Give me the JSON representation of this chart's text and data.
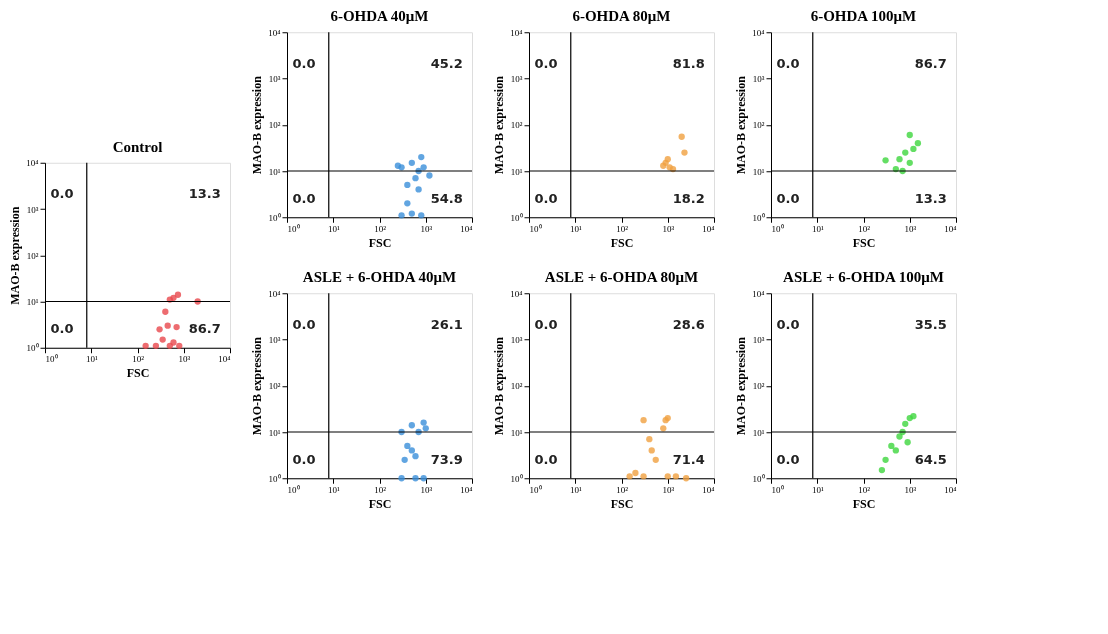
{
  "chart_data": [
    {
      "type": "scatter",
      "title": "Control",
      "xlabel": "FSC",
      "ylabel": "MAO-B expression",
      "log": "xy",
      "grid": false,
      "legend": false,
      "marker": "circle",
      "xlim": [
        1,
        10000
      ],
      "ylim": [
        1,
        10000
      ],
      "xticks": [
        {
          "value": 1,
          "label": "10⁰"
        },
        {
          "value": 10,
          "label": "10¹"
        },
        {
          "value": 100,
          "label": "10²"
        },
        {
          "value": 1000,
          "label": "10³"
        },
        {
          "value": 10000,
          "label": "10⁴"
        }
      ],
      "yticks": [
        {
          "value": 1,
          "label": "10⁰"
        },
        {
          "value": 10,
          "label": "10¹"
        },
        {
          "value": 100,
          "label": "10²"
        },
        {
          "value": 1000,
          "label": "10³"
        },
        {
          "value": 10000,
          "label": "10⁴"
        }
      ],
      "ref_lines": [
        {
          "axis": "x",
          "value": 8
        },
        {
          "axis": "y",
          "value": 10
        }
      ],
      "annotations": [
        "0.0",
        "13.3",
        "0.0",
        "86.7"
      ],
      "series": [
        {
          "color": "#e8474c",
          "x": [
            150,
            250,
            500,
            800,
            300,
            450,
            700,
            350,
            600,
            600,
            750,
            500,
            400,
            2000
          ],
          "values": [
            1.1,
            1.1,
            1.1,
            1.1,
            2.5,
            3,
            2.8,
            1.5,
            1.3,
            12,
            14,
            11,
            6,
            10
          ]
        }
      ]
    },
    {
      "type": "scatter",
      "title": "6-OHDA 40μM",
      "xlabel": "FSC",
      "ylabel": "MAO-B expression",
      "log": "xy",
      "grid": false,
      "legend": false,
      "marker": "circle",
      "xlim": [
        1,
        10000
      ],
      "ylim": [
        1,
        10000
      ],
      "xticks": [
        {
          "value": 1,
          "label": "10⁰"
        },
        {
          "value": 10,
          "label": "10¹"
        },
        {
          "value": 100,
          "label": "10²"
        },
        {
          "value": 1000,
          "label": "10³"
        },
        {
          "value": 10000,
          "label": "10⁴"
        }
      ],
      "yticks": [
        {
          "value": 1,
          "label": "10⁰"
        },
        {
          "value": 10,
          "label": "10¹"
        },
        {
          "value": 100,
          "label": "10²"
        },
        {
          "value": 1000,
          "label": "10³"
        },
        {
          "value": 10000,
          "label": "10⁴"
        }
      ],
      "ref_lines": [
        {
          "axis": "x",
          "value": 8
        },
        {
          "axis": "y",
          "value": 10
        }
      ],
      "annotations": [
        "0.0",
        "45.2",
        "0.0",
        "54.8"
      ],
      "series": [
        {
          "color": "#3a8fd9",
          "x": [
            300,
            500,
            700,
            900,
            1200,
            800,
            400,
            700,
            400,
            300,
            500,
            800,
            600,
            250
          ],
          "values": [
            12,
            15,
            10,
            12,
            8,
            20,
            5,
            4,
            2,
            1.1,
            1.2,
            1.1,
            7,
            13
          ]
        }
      ]
    },
    {
      "type": "scatter",
      "title": "6-OHDA 80μM",
      "xlabel": "FSC",
      "ylabel": "MAO-B expression",
      "log": "xy",
      "grid": false,
      "legend": false,
      "marker": "circle",
      "xlim": [
        1,
        10000
      ],
      "ylim": [
        1,
        10000
      ],
      "xticks": [
        {
          "value": 1,
          "label": "10⁰"
        },
        {
          "value": 10,
          "label": "10¹"
        },
        {
          "value": 100,
          "label": "10²"
        },
        {
          "value": 1000,
          "label": "10³"
        },
        {
          "value": 10000,
          "label": "10⁴"
        }
      ],
      "yticks": [
        {
          "value": 1,
          "label": "10⁰"
        },
        {
          "value": 10,
          "label": "10¹"
        },
        {
          "value": 100,
          "label": "10²"
        },
        {
          "value": 1000,
          "label": "10³"
        },
        {
          "value": 10000,
          "label": "10⁴"
        }
      ],
      "ref_lines": [
        {
          "axis": "x",
          "value": 8
        },
        {
          "axis": "y",
          "value": 10
        }
      ],
      "annotations": [
        "0.0",
        "81.8",
        "0.0",
        "18.2"
      ],
      "series": [
        {
          "color": "#f0a040",
          "x": [
            900,
            1100,
            1300,
            1000,
            800,
            2000,
            2300
          ],
          "values": [
            15,
            12,
            11,
            18,
            13,
            55,
            25
          ]
        }
      ]
    },
    {
      "type": "scatter",
      "title": "6-OHDA 100μM",
      "xlabel": "FSC",
      "ylabel": "MAO-B expression",
      "log": "xy",
      "grid": false,
      "legend": false,
      "marker": "circle",
      "xlim": [
        1,
        10000
      ],
      "ylim": [
        1,
        10000
      ],
      "xticks": [
        {
          "value": 1,
          "label": "10⁰"
        },
        {
          "value": 10,
          "label": "10¹"
        },
        {
          "value": 100,
          "label": "10²"
        },
        {
          "value": 1000,
          "label": "10³"
        },
        {
          "value": 10000,
          "label": "10⁴"
        }
      ],
      "yticks": [
        {
          "value": 1,
          "label": "10⁰"
        },
        {
          "value": 10,
          "label": "10¹"
        },
        {
          "value": 100,
          "label": "10²"
        },
        {
          "value": 1000,
          "label": "10³"
        },
        {
          "value": 10000,
          "label": "10⁴"
        }
      ],
      "ref_lines": [
        {
          "axis": "x",
          "value": 8
        },
        {
          "axis": "y",
          "value": 10
        }
      ],
      "annotations": [
        "0.0",
        "86.7",
        "0.0",
        "13.3"
      ],
      "series": [
        {
          "color": "#3dd63d",
          "x": [
            300,
            500,
            700,
            1000,
            1200,
            800,
            1000,
            600,
            1500
          ],
          "values": [
            17,
            11,
            10,
            15,
            30,
            25,
            60,
            18,
            40
          ]
        }
      ]
    },
    {
      "type": "scatter",
      "title": "ASLE + 6-OHDA 40μM",
      "xlabel": "FSC",
      "ylabel": "MAO-B expression",
      "log": "xy",
      "grid": false,
      "legend": false,
      "marker": "circle",
      "xlim": [
        1,
        10000
      ],
      "ylim": [
        1,
        10000
      ],
      "xticks": [
        {
          "value": 1,
          "label": "10⁰"
        },
        {
          "value": 10,
          "label": "10¹"
        },
        {
          "value": 100,
          "label": "10²"
        },
        {
          "value": 1000,
          "label": "10³"
        },
        {
          "value": 10000,
          "label": "10⁴"
        }
      ],
      "yticks": [
        {
          "value": 1,
          "label": "10⁰"
        },
        {
          "value": 10,
          "label": "10¹"
        },
        {
          "value": 100,
          "label": "10²"
        },
        {
          "value": 1000,
          "label": "10³"
        },
        {
          "value": 10000,
          "label": "10⁴"
        }
      ],
      "ref_lines": [
        {
          "axis": "x",
          "value": 8
        },
        {
          "axis": "y",
          "value": 10
        }
      ],
      "annotations": [
        "0.0",
        "26.1",
        "0.0",
        "73.9"
      ],
      "series": [
        {
          "color": "#3a8fd9",
          "x": [
            300,
            500,
            700,
            900,
            400,
            600,
            500,
            300,
            600,
            900,
            350,
            1000
          ],
          "values": [
            10,
            14,
            10,
            16,
            5,
            3,
            4,
            1,
            1,
            1,
            2.5,
            12
          ]
        }
      ]
    },
    {
      "type": "scatter",
      "title": "ASLE + 6-OHDA 80μM",
      "xlabel": "FSC",
      "ylabel": "MAO-B expression",
      "log": "xy",
      "grid": false,
      "legend": false,
      "marker": "circle",
      "xlim": [
        1,
        10000
      ],
      "ylim": [
        1,
        10000
      ],
      "xticks": [
        {
          "value": 1,
          "label": "10⁰"
        },
        {
          "value": 10,
          "label": "10¹"
        },
        {
          "value": 100,
          "label": "10²"
        },
        {
          "value": 1000,
          "label": "10³"
        },
        {
          "value": 10000,
          "label": "10⁴"
        }
      ],
      "yticks": [
        {
          "value": 1,
          "label": "10⁰"
        },
        {
          "value": 10,
          "label": "10¹"
        },
        {
          "value": 100,
          "label": "10²"
        },
        {
          "value": 1000,
          "label": "10³"
        },
        {
          "value": 10000,
          "label": "10⁴"
        }
      ],
      "ref_lines": [
        {
          "axis": "x",
          "value": 8
        },
        {
          "axis": "y",
          "value": 10
        }
      ],
      "annotations": [
        "0.0",
        "28.6",
        "0.0",
        "71.4"
      ],
      "series": [
        {
          "color": "#f0a040",
          "x": [
            300,
            900,
            800,
            1000,
            400,
            450,
            550,
            150,
            200,
            300,
            1000,
            1500,
            2500
          ],
          "values": [
            18,
            18,
            12,
            20,
            7,
            4,
            2.5,
            1.1,
            1.3,
            1.1,
            1.1,
            1.1,
            1
          ]
        }
      ]
    },
    {
      "type": "scatter",
      "title": "ASLE + 6-OHDA 100μM",
      "xlabel": "FSC",
      "ylabel": "MAO-B expression",
      "log": "xy",
      "grid": false,
      "legend": false,
      "marker": "circle",
      "xlim": [
        1,
        10000
      ],
      "ylim": [
        1,
        10000
      ],
      "xticks": [
        {
          "value": 1,
          "label": "10⁰"
        },
        {
          "value": 10,
          "label": "10¹"
        },
        {
          "value": 100,
          "label": "10²"
        },
        {
          "value": 1000,
          "label": "10³"
        },
        {
          "value": 10000,
          "label": "10⁴"
        }
      ],
      "yticks": [
        {
          "value": 1,
          "label": "10⁰"
        },
        {
          "value": 10,
          "label": "10¹"
        },
        {
          "value": 100,
          "label": "10²"
        },
        {
          "value": 1000,
          "label": "10³"
        },
        {
          "value": 10000,
          "label": "10⁴"
        }
      ],
      "ref_lines": [
        {
          "axis": "x",
          "value": 8
        },
        {
          "axis": "y",
          "value": 10
        }
      ],
      "annotations": [
        "0.0",
        "35.5",
        "0.0",
        "64.5"
      ],
      "series": [
        {
          "color": "#3dd63d",
          "x": [
            250,
            300,
            400,
            500,
            600,
            700,
            800,
            1000,
            1200,
            900
          ],
          "values": [
            1.5,
            2.5,
            5,
            4,
            8,
            10,
            15,
            20,
            22,
            6
          ]
        }
      ]
    }
  ]
}
